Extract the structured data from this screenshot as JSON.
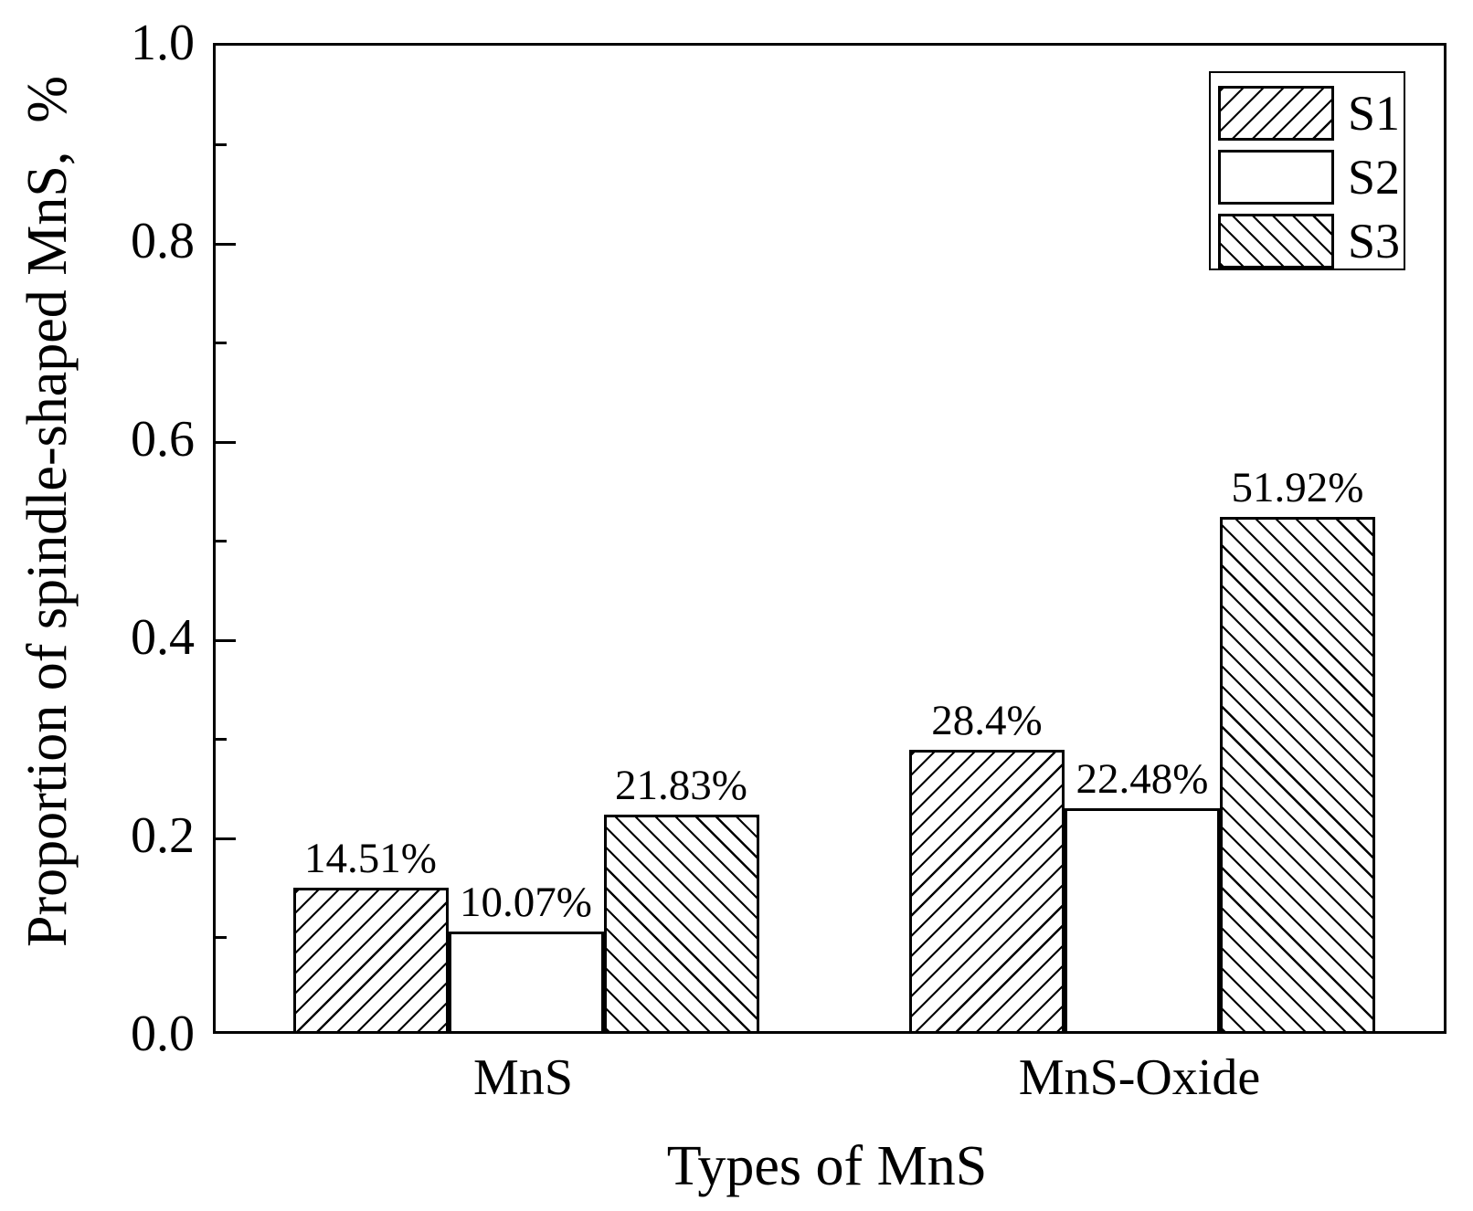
{
  "figure": {
    "background_color": "#ffffff",
    "ink_color": "#000000"
  },
  "chart_data": {
    "type": "bar",
    "title": "",
    "xlabel": "Types of MnS",
    "ylabel": "Proportion of spindle-shaped MnS,  %",
    "categories": [
      "MnS",
      "MnS-Oxide"
    ],
    "series": [
      {
        "name": "S1",
        "hatch": "forward-diagonal",
        "values": [
          14.51,
          28.4
        ],
        "bar_labels": [
          "14.51%",
          "28.4%"
        ]
      },
      {
        "name": "S2",
        "hatch": "none",
        "values": [
          10.07,
          22.48
        ],
        "bar_labels": [
          "10.07%",
          "22.48%"
        ]
      },
      {
        "name": "S3",
        "hatch": "backward-diagonal",
        "values": [
          21.83,
          51.92
        ],
        "bar_labels": [
          "21.83%",
          "51.92%"
        ]
      }
    ],
    "value_unit": "%",
    "ylim": [
      0.0,
      1.0
    ],
    "yticks_major": [
      "0.0",
      "0.2",
      "0.4",
      "0.6",
      "0.8",
      "1.0"
    ],
    "yticks_minor": [
      0.1,
      0.3,
      0.5,
      0.7,
      0.9
    ],
    "grid": "off",
    "legend": {
      "position": "upper-right",
      "entries": [
        "S1",
        "S2",
        "S3"
      ]
    }
  }
}
